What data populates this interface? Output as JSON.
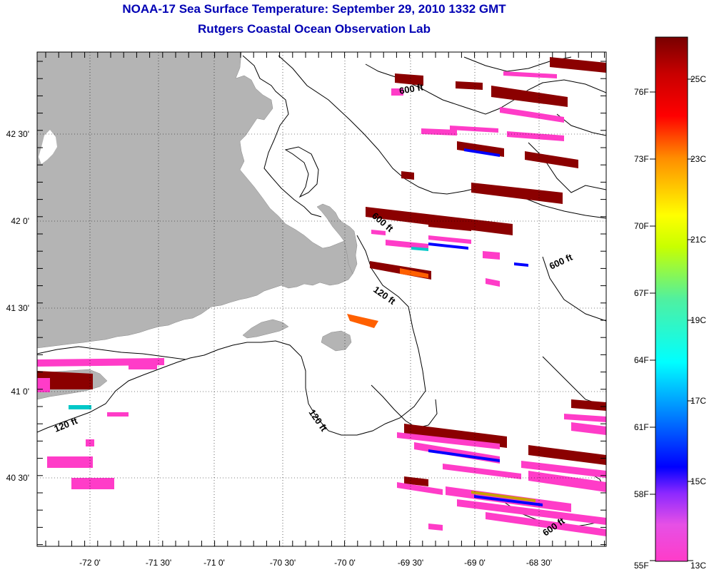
{
  "title": {
    "line1": "NOAA-17 Sea Surface Temperature:  September 29, 2010 1332 GMT",
    "line2": "Rutgers Coastal Ocean Observation Lab"
  },
  "map": {
    "x_ticks": [
      "-72 0'",
      "-71 30'",
      "-71 0'",
      "-70 30'",
      "-70 0'",
      "-69 30'",
      "-69 0'",
      "-68 30'"
    ],
    "y_ticks": [
      "42 30'",
      "42 0'",
      "41 30'",
      "41 0'",
      "40 30'"
    ],
    "contour_labels": [
      "600 ft",
      "600 ft",
      "600 ft",
      "600 ft",
      "120 ft",
      "120 ft",
      "120 ft"
    ],
    "land_color": "#b4b4b4"
  },
  "colorbar": {
    "fahrenheit_labels": [
      "76F",
      "73F",
      "70F",
      "67F",
      "64F",
      "61F",
      "58F",
      "55F"
    ],
    "celsius_labels": [
      "25C",
      "23C",
      "21C",
      "19C",
      "17C",
      "15C",
      "13C"
    ]
  }
}
